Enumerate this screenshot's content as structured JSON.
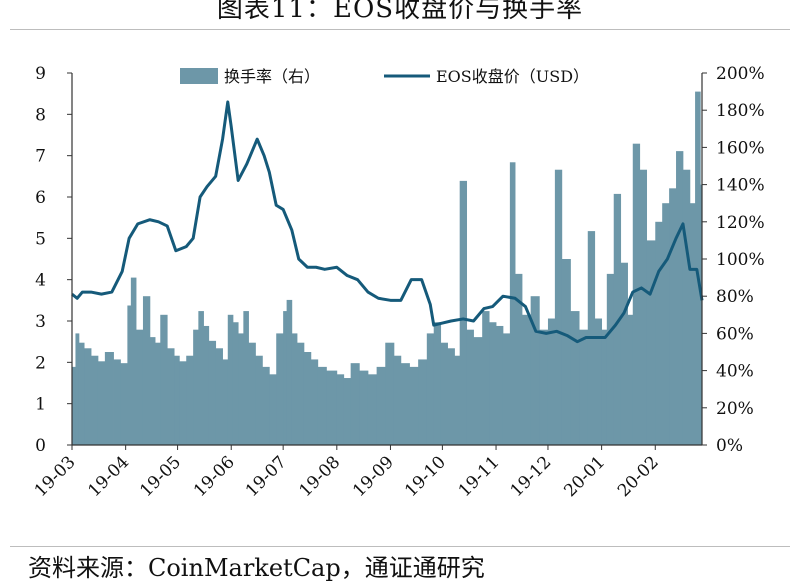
{
  "title": "图表11：EOS收盘价与换手率",
  "source": "资料来源：CoinMarketCap，通证通研究",
  "colors": {
    "bar": "#6d97a8",
    "line": "#155a7a",
    "axis": "#333333"
  },
  "chart_data": {
    "type": "bar+line",
    "legend": {
      "placement": "top-center"
    },
    "grid": false,
    "x_axis": {
      "type": "date",
      "range": [
        "2019-03-01",
        "2020-02-28"
      ],
      "tick_dates": [
        "2019-03-01",
        "2019-04-01",
        "2019-05-01",
        "2019-06-01",
        "2019-07-01",
        "2019-08-01",
        "2019-09-01",
        "2019-10-01",
        "2019-11-01",
        "2019-12-01",
        "2020-01-01",
        "2020-02-01"
      ],
      "tick_labels": [
        "19-03",
        "19-04",
        "19-05",
        "19-06",
        "19-07",
        "19-08",
        "19-09",
        "19-10",
        "19-11",
        "19-12",
        "20-01",
        "20-02"
      ]
    },
    "y_left": {
      "range": [
        0,
        9
      ],
      "ticks": [
        0,
        1,
        2,
        3,
        4,
        5,
        6,
        7,
        8,
        9
      ],
      "tick_labels": [
        "0",
        "1",
        "2",
        "3",
        "4",
        "5",
        "6",
        "7",
        "8",
        "9"
      ]
    },
    "y_right": {
      "range": [
        0,
        200
      ],
      "ticks": [
        0,
        20,
        40,
        60,
        80,
        100,
        120,
        140,
        160,
        180,
        200
      ],
      "tick_labels": [
        "0%",
        "20%",
        "40%",
        "60%",
        "80%",
        "100%",
        "120%",
        "140%",
        "160%",
        "180%",
        "200%"
      ]
    },
    "series": [
      {
        "name": "换手率（右）",
        "type": "bar",
        "axis": "right",
        "unit": "%",
        "points": [
          [
            "2019-03-01",
            42
          ],
          [
            "2019-03-03",
            60
          ],
          [
            "2019-03-05",
            55
          ],
          [
            "2019-03-08",
            52
          ],
          [
            "2019-03-12",
            48
          ],
          [
            "2019-03-16",
            45
          ],
          [
            "2019-03-20",
            50
          ],
          [
            "2019-03-25",
            46
          ],
          [
            "2019-03-29",
            44
          ],
          [
            "2019-04-02",
            75
          ],
          [
            "2019-04-04",
            90
          ],
          [
            "2019-04-07",
            62
          ],
          [
            "2019-04-11",
            80
          ],
          [
            "2019-04-15",
            58
          ],
          [
            "2019-04-18",
            55
          ],
          [
            "2019-04-21",
            70
          ],
          [
            "2019-04-25",
            52
          ],
          [
            "2019-04-29",
            48
          ],
          [
            "2019-05-02",
            45
          ],
          [
            "2019-05-06",
            48
          ],
          [
            "2019-05-10",
            62
          ],
          [
            "2019-05-13",
            72
          ],
          [
            "2019-05-16",
            64
          ],
          [
            "2019-05-19",
            56
          ],
          [
            "2019-05-23",
            52
          ],
          [
            "2019-05-27",
            46
          ],
          [
            "2019-05-30",
            70
          ],
          [
            "2019-06-02",
            66
          ],
          [
            "2019-06-05",
            60
          ],
          [
            "2019-06-08",
            72
          ],
          [
            "2019-06-11",
            55
          ],
          [
            "2019-06-15",
            48
          ],
          [
            "2019-06-19",
            42
          ],
          [
            "2019-06-23",
            38
          ],
          [
            "2019-06-27",
            60
          ],
          [
            "2019-07-01",
            72
          ],
          [
            "2019-07-03",
            78
          ],
          [
            "2019-07-06",
            60
          ],
          [
            "2019-07-09",
            55
          ],
          [
            "2019-07-13",
            50
          ],
          [
            "2019-07-17",
            46
          ],
          [
            "2019-07-21",
            42
          ],
          [
            "2019-07-26",
            40
          ],
          [
            "2019-08-01",
            38
          ],
          [
            "2019-08-05",
            36
          ],
          [
            "2019-08-09",
            44
          ],
          [
            "2019-08-14",
            40
          ],
          [
            "2019-08-19",
            38
          ],
          [
            "2019-08-24",
            42
          ],
          [
            "2019-08-29",
            55
          ],
          [
            "2019-09-03",
            48
          ],
          [
            "2019-09-07",
            44
          ],
          [
            "2019-09-12",
            42
          ],
          [
            "2019-09-17",
            46
          ],
          [
            "2019-09-22",
            60
          ],
          [
            "2019-09-26",
            66
          ],
          [
            "2019-09-30",
            55
          ],
          [
            "2019-10-04",
            52
          ],
          [
            "2019-10-08",
            48
          ],
          [
            "2019-10-11",
            142
          ],
          [
            "2019-10-15",
            62
          ],
          [
            "2019-10-19",
            58
          ],
          [
            "2019-10-24",
            72
          ],
          [
            "2019-10-28",
            66
          ],
          [
            "2019-11-01",
            64
          ],
          [
            "2019-11-05",
            60
          ],
          [
            "2019-11-09",
            152
          ],
          [
            "2019-11-12",
            92
          ],
          [
            "2019-11-16",
            70
          ],
          [
            "2019-11-21",
            80
          ],
          [
            "2019-11-26",
            62
          ],
          [
            "2019-12-01",
            68
          ],
          [
            "2019-12-05",
            148
          ],
          [
            "2019-12-09",
            100
          ],
          [
            "2019-12-14",
            72
          ],
          [
            "2019-12-19",
            62
          ],
          [
            "2019-12-24",
            115
          ],
          [
            "2019-12-28",
            68
          ],
          [
            "2020-01-01",
            62
          ],
          [
            "2020-01-04",
            92
          ],
          [
            "2020-01-08",
            135
          ],
          [
            "2020-01-12",
            98
          ],
          [
            "2020-01-16",
            70
          ],
          [
            "2020-01-19",
            162
          ],
          [
            "2020-01-23",
            148
          ],
          [
            "2020-01-27",
            110
          ],
          [
            "2020-02-01",
            120
          ],
          [
            "2020-02-05",
            130
          ],
          [
            "2020-02-09",
            138
          ],
          [
            "2020-02-13",
            158
          ],
          [
            "2020-02-17",
            148
          ],
          [
            "2020-02-21",
            130
          ],
          [
            "2020-02-24",
            190
          ],
          [
            "2020-02-27",
            140
          ]
        ]
      },
      {
        "name": "EOS收盘价（USD）",
        "type": "line",
        "axis": "left",
        "unit": "USD",
        "points": [
          [
            "2019-03-01",
            3.65
          ],
          [
            "2019-03-04",
            3.55
          ],
          [
            "2019-03-07",
            3.7
          ],
          [
            "2019-03-12",
            3.7
          ],
          [
            "2019-03-18",
            3.65
          ],
          [
            "2019-03-24",
            3.7
          ],
          [
            "2019-03-30",
            4.2
          ],
          [
            "2019-04-03",
            5.0
          ],
          [
            "2019-04-08",
            5.35
          ],
          [
            "2019-04-15",
            5.45
          ],
          [
            "2019-04-20",
            5.4
          ],
          [
            "2019-04-25",
            5.3
          ],
          [
            "2019-04-30",
            4.7
          ],
          [
            "2019-05-06",
            4.8
          ],
          [
            "2019-05-10",
            5.0
          ],
          [
            "2019-05-14",
            6.0
          ],
          [
            "2019-05-18",
            6.25
          ],
          [
            "2019-05-23",
            6.5
          ],
          [
            "2019-05-27",
            7.4
          ],
          [
            "2019-05-30",
            8.3
          ],
          [
            "2019-06-01",
            7.7
          ],
          [
            "2019-06-05",
            6.4
          ],
          [
            "2019-06-10",
            6.8
          ],
          [
            "2019-06-16",
            7.4
          ],
          [
            "2019-06-20",
            7.0
          ],
          [
            "2019-06-23",
            6.6
          ],
          [
            "2019-06-27",
            5.8
          ],
          [
            "2019-07-01",
            5.7
          ],
          [
            "2019-07-06",
            5.2
          ],
          [
            "2019-07-10",
            4.5
          ],
          [
            "2019-07-15",
            4.3
          ],
          [
            "2019-07-20",
            4.3
          ],
          [
            "2019-07-25",
            4.25
          ],
          [
            "2019-08-01",
            4.3
          ],
          [
            "2019-08-07",
            4.1
          ],
          [
            "2019-08-13",
            4.0
          ],
          [
            "2019-08-19",
            3.7
          ],
          [
            "2019-08-25",
            3.55
          ],
          [
            "2019-09-01",
            3.5
          ],
          [
            "2019-09-07",
            3.5
          ],
          [
            "2019-09-13",
            4.0
          ],
          [
            "2019-09-19",
            4.0
          ],
          [
            "2019-09-24",
            3.4
          ],
          [
            "2019-09-26",
            2.9
          ],
          [
            "2019-10-01",
            2.95
          ],
          [
            "2019-10-06",
            3.0
          ],
          [
            "2019-10-13",
            3.05
          ],
          [
            "2019-10-19",
            3.0
          ],
          [
            "2019-10-25",
            3.3
          ],
          [
            "2019-10-30",
            3.35
          ],
          [
            "2019-11-05",
            3.6
          ],
          [
            "2019-11-12",
            3.55
          ],
          [
            "2019-11-18",
            3.35
          ],
          [
            "2019-11-24",
            2.75
          ],
          [
            "2019-11-30",
            2.7
          ],
          [
            "2019-12-06",
            2.75
          ],
          [
            "2019-12-12",
            2.65
          ],
          [
            "2019-12-18",
            2.5
          ],
          [
            "2019-12-23",
            2.6
          ],
          [
            "2019-12-28",
            2.6
          ],
          [
            "2020-01-03",
            2.6
          ],
          [
            "2020-01-09",
            2.9
          ],
          [
            "2020-01-14",
            3.2
          ],
          [
            "2020-01-19",
            3.7
          ],
          [
            "2020-01-24",
            3.8
          ],
          [
            "2020-01-29",
            3.65
          ],
          [
            "2020-02-03",
            4.2
          ],
          [
            "2020-02-08",
            4.5
          ],
          [
            "2020-02-13",
            5.0
          ],
          [
            "2020-02-17",
            5.35
          ],
          [
            "2020-02-21",
            4.25
          ],
          [
            "2020-02-25",
            4.25
          ],
          [
            "2020-02-28",
            3.5
          ]
        ]
      }
    ]
  }
}
